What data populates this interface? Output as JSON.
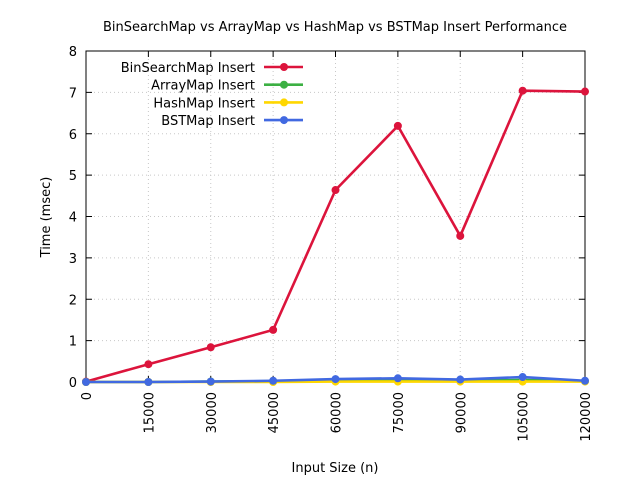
{
  "chart_data": {
    "type": "line",
    "title": "BinSearchMap vs ArrayMap vs HashMap vs BSTMap Insert Performance",
    "xlabel": "Input Size (n)",
    "ylabel": "Time (msec)",
    "x": [
      0,
      15000,
      30000,
      45000,
      60000,
      75000,
      90000,
      105000,
      120000
    ],
    "x_tick_labels": [
      "0",
      "15000",
      "30000",
      "45000",
      "60000",
      "75000",
      "90000",
      "105000",
      "120000"
    ],
    "y_tick_labels": [
      "0",
      "1",
      "2",
      "3",
      "4",
      "5",
      "6",
      "7",
      "8"
    ],
    "xlim": [
      0,
      120000
    ],
    "ylim": [
      0,
      8
    ],
    "grid": true,
    "legend_position": "top-left",
    "series": [
      {
        "name": "BinSearchMap Insert",
        "color": "#dc143c",
        "values": [
          0.01,
          0.43,
          0.84,
          1.26,
          4.64,
          6.19,
          3.53,
          7.04,
          7.02
        ]
      },
      {
        "name": "ArrayMap Insert",
        "color": "#3cb043",
        "values": [
          0.0,
          0.0,
          0.01,
          0.02,
          0.03,
          0.04,
          0.03,
          0.05,
          0.02
        ]
      },
      {
        "name": "HashMap Insert",
        "color": "#ffd700",
        "values": [
          0.0,
          0.0,
          0.0,
          0.0,
          0.01,
          0.01,
          0.01,
          0.01,
          0.01
        ]
      },
      {
        "name": "BSTMap Insert",
        "color": "#4169e1",
        "values": [
          0.0,
          0.0,
          0.01,
          0.03,
          0.07,
          0.09,
          0.06,
          0.12,
          0.03
        ]
      }
    ]
  }
}
